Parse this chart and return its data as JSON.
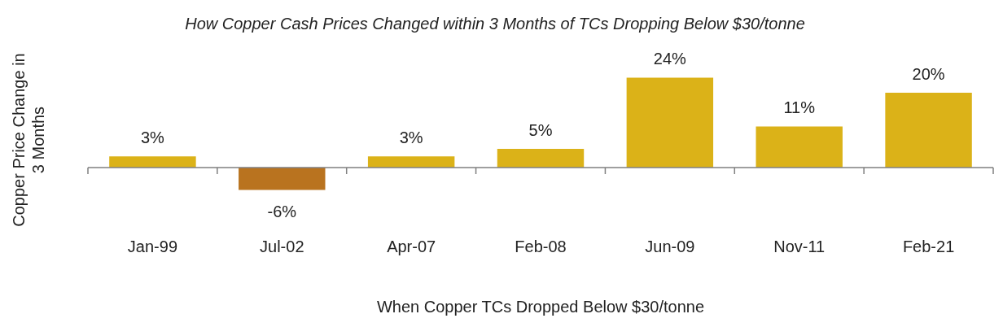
{
  "chart_data": {
    "type": "bar",
    "title": "How Copper Cash Prices Changed within 3 Months of TCs Dropping Below $30/tonne",
    "xlabel": "When Copper TCs Dropped Below $30/tonne",
    "ylabel": "Copper Price Change in 3 Months",
    "categories": [
      "Jan-99",
      "Jul-02",
      "Apr-07",
      "Feb-08",
      "Jun-09",
      "Nov-11",
      "Feb-21"
    ],
    "values": [
      3,
      -6,
      3,
      5,
      24,
      11,
      20
    ],
    "colors": [
      "#dbb218",
      "#b9731f",
      "#dbb218",
      "#dbb218",
      "#dbb218",
      "#dbb218",
      "#dbb218"
    ],
    "value_labels": [
      "3%",
      "-6%",
      "3%",
      "5%",
      "24%",
      "11%",
      "20%"
    ],
    "grid": false,
    "legend": false
  }
}
